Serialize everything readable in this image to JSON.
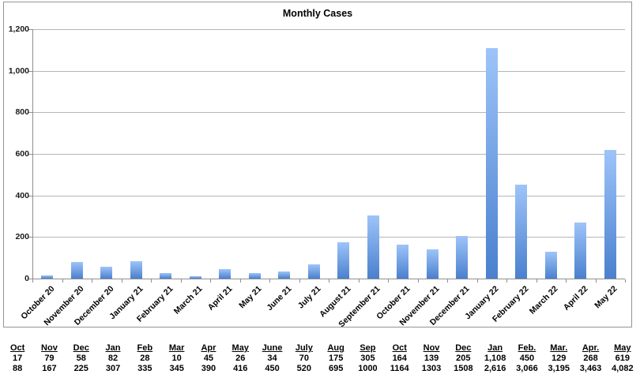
{
  "chart_data": {
    "type": "bar",
    "title": "Monthly Cases",
    "categories": [
      "October 20",
      "November 20",
      "December 20",
      "January 21",
      "February 21",
      "March 21",
      "April 21",
      "May 21",
      "June 21",
      "July 21",
      "August 21",
      "September 21",
      "October 21",
      "November 21",
      "December 21",
      "January 22",
      "February 22",
      "March 22",
      "April 22",
      "May 22"
    ],
    "values": [
      17,
      79,
      58,
      82,
      28,
      10,
      45,
      26,
      34,
      70,
      175,
      305,
      164,
      139,
      205,
      1108,
      450,
      129,
      268,
      619
    ],
    "xlabel": "",
    "ylabel": "",
    "ylim": [
      0,
      1200
    ],
    "ytick_step": 200,
    "ytick_labels": [
      "0",
      "200",
      "400",
      "600",
      "800",
      "1,000",
      "1,200"
    ],
    "grid": true,
    "legend": false,
    "bar_color_top": "#9ec4f9",
    "bar_color_bottom": "#4a80ce"
  },
  "summary_table": {
    "headers": [
      "Oct",
      "Nov",
      "Dec",
      "Jan",
      "Feb",
      "Mar",
      "Apr",
      "May",
      "June",
      "July",
      "Aug",
      "Sep",
      "Oct",
      "Nov",
      "Dec",
      "Jan",
      "Feb.",
      "Mar.",
      "Apr.",
      "May"
    ],
    "row1": [
      "17",
      "79",
      "58",
      "82",
      "28",
      "10",
      "45",
      "26",
      "34",
      "70",
      "175",
      "305",
      "164",
      "139",
      "205",
      "1,108",
      "450",
      "129",
      "268",
      "619"
    ],
    "row2": [
      "88",
      "167",
      "225",
      "307",
      "335",
      "345",
      "390",
      "416",
      "450",
      "520",
      "695",
      "1000",
      "1164",
      "1303",
      "1508",
      "2,616",
      "3,066",
      "3,195",
      "3,463",
      "4,082"
    ]
  }
}
